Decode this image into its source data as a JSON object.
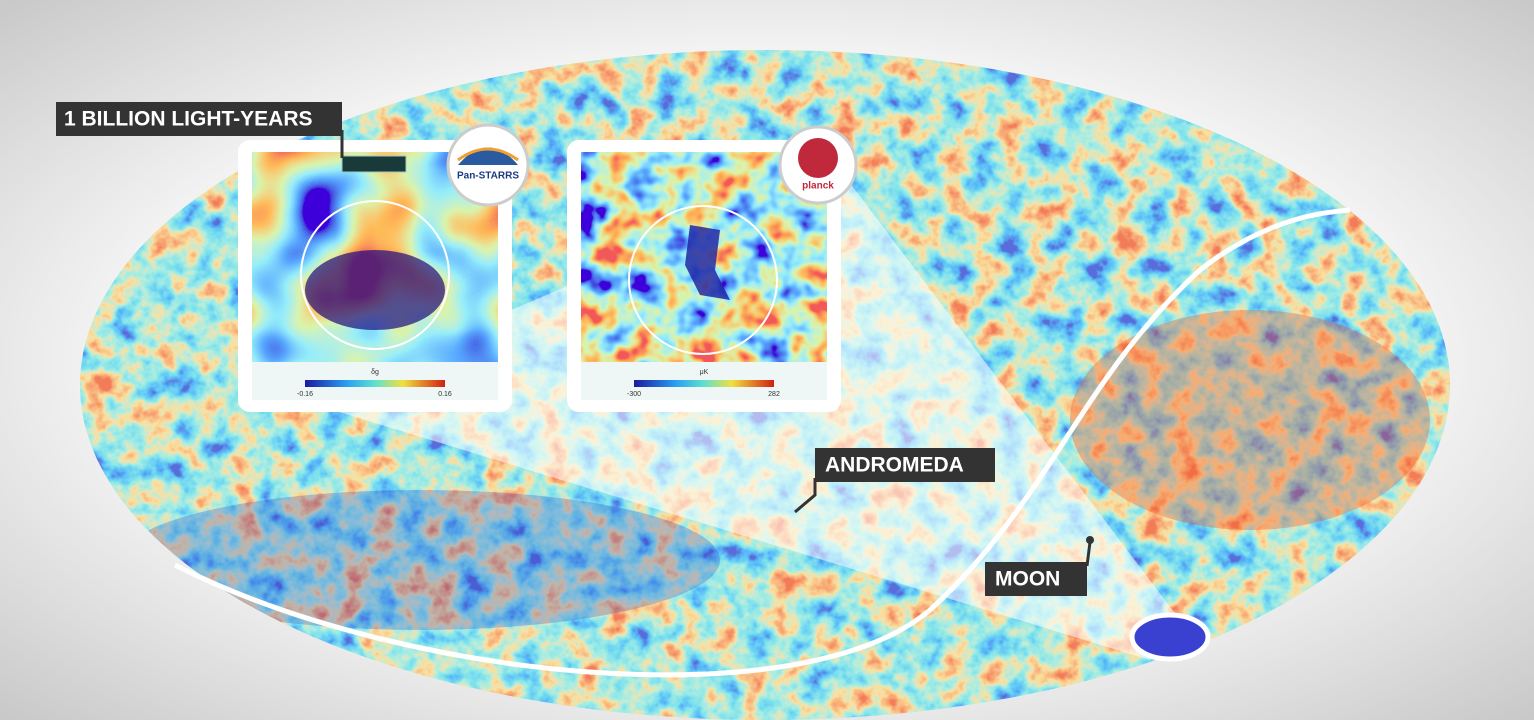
{
  "labels": {
    "scale": "1 BILLION LIGHT-YEARS",
    "andromeda": "ANDROMEDA",
    "moon": "MOON"
  },
  "insets": [
    {
      "logo": "Pan-STARRS",
      "axis_label": "δg",
      "colorbar": [
        "-0.16",
        "0.16"
      ]
    },
    {
      "logo": "planck",
      "axis_label": "μK",
      "colorbar": [
        "-300",
        "282"
      ]
    }
  ]
}
